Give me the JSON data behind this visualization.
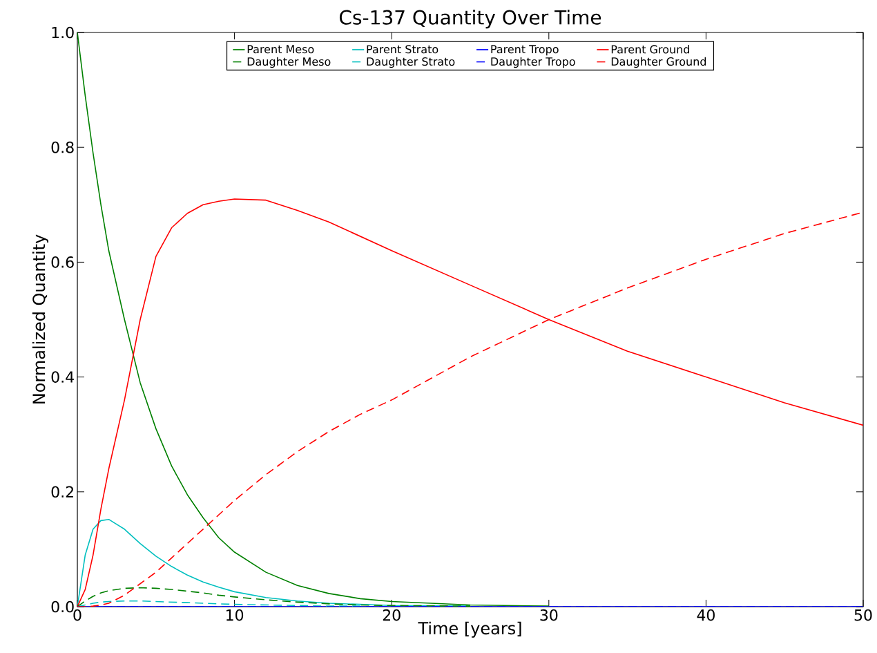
{
  "chart_data": {
    "type": "line",
    "title": "Cs-137 Quantity Over Time",
    "xlabel": "Time [years]",
    "ylabel": "Normalized Quantity",
    "x": [
      0,
      0.5,
      1,
      1.5,
      2,
      3,
      4,
      5,
      6,
      7,
      8,
      9,
      10,
      12,
      14,
      16,
      18,
      20,
      25,
      30,
      35,
      40,
      45,
      50
    ],
    "series": [
      {
        "name": "Parent Meso",
        "color": "#008000",
        "line_style": "solid",
        "values": [
          1,
          0.89,
          0.79,
          0.7,
          0.62,
          0.5,
          0.39,
          0.31,
          0.245,
          0.195,
          0.155,
          0.12,
          0.095,
          0.06,
          0.037,
          0.023,
          0.014,
          0.009,
          0.003,
          0.001,
          null,
          null,
          null,
          null
        ]
      },
      {
        "name": "Daughter Meso",
        "color": "#008000",
        "line_style": "dashed",
        "values": [
          0,
          0.01,
          0.018,
          0.024,
          0.028,
          0.032,
          0.033,
          0.032,
          0.03,
          0.027,
          0.024,
          0.02,
          0.017,
          0.012,
          0.008,
          0.005,
          0.003,
          0.002,
          0.001,
          null,
          null,
          null,
          null,
          null
        ]
      },
      {
        "name": "Parent Strato",
        "color": "#00bfbf",
        "line_style": "solid",
        "values": [
          0,
          0.09,
          0.135,
          0.15,
          0.152,
          0.135,
          0.11,
          0.088,
          0.07,
          0.055,
          0.043,
          0.034,
          0.026,
          0.016,
          0.01,
          0.006,
          0.004,
          0.002,
          0.001,
          null,
          null,
          null,
          null,
          null
        ]
      },
      {
        "name": "Daughter Strato",
        "color": "#00bfbf",
        "line_style": "dashed",
        "values": [
          0,
          0.003,
          0.006,
          0.008,
          0.009,
          0.01,
          0.01,
          0.009,
          0.008,
          0.007,
          0.006,
          0.005,
          0.004,
          0.003,
          0.002,
          0.001,
          0.001,
          null,
          null,
          null,
          null,
          null,
          null,
          null
        ]
      },
      {
        "name": "Parent Tropo",
        "color": "#0000ff",
        "line_style": "solid",
        "values": [
          0,
          0,
          0,
          0,
          0,
          0,
          0,
          0,
          0,
          0,
          0,
          0,
          0,
          0,
          0,
          0,
          0,
          0,
          0,
          0,
          0,
          0,
          0,
          0
        ]
      },
      {
        "name": "Daughter Tropo",
        "color": "#0000ff",
        "line_style": "dashed",
        "values": [
          0,
          0,
          0,
          0,
          0,
          0,
          0,
          0,
          0,
          0,
          0,
          0,
          0,
          0,
          0,
          0,
          0,
          0,
          0,
          0,
          0,
          0,
          0,
          0
        ]
      },
      {
        "name": "Parent Ground",
        "color": "#ff0000",
        "line_style": "solid",
        "values": [
          0,
          0.03,
          0.09,
          0.17,
          0.24,
          0.36,
          0.5,
          0.61,
          0.66,
          0.685,
          0.7,
          0.706,
          0.71,
          0.708,
          0.69,
          0.67,
          0.645,
          0.62,
          0.56,
          0.5,
          0.445,
          0.4,
          0.355,
          0.316
        ]
      },
      {
        "name": "Daughter Ground",
        "color": "#ff0000",
        "line_style": "dashed",
        "values": [
          0,
          0,
          0.001,
          0.003,
          0.006,
          0.02,
          0.04,
          0.06,
          0.085,
          0.11,
          0.135,
          0.16,
          0.185,
          0.23,
          0.27,
          0.305,
          0.335,
          0.36,
          0.435,
          0.5,
          0.555,
          0.605,
          0.65,
          0.687
        ]
      }
    ],
    "xlim": [
      0,
      50
    ],
    "ylim": [
      0,
      1
    ],
    "xticks": [
      0,
      10,
      20,
      30,
      40,
      50
    ],
    "yticks": [
      {
        "value": 0,
        "label": "0.0"
      },
      {
        "value": 0.2,
        "label": "0.2"
      },
      {
        "value": 0.4,
        "label": "0.4"
      },
      {
        "value": 0.6,
        "label": "0.6"
      },
      {
        "value": 0.8,
        "label": "0.8"
      },
      {
        "value": 1,
        "label": "1.0"
      }
    ],
    "legend": "top",
    "grid": false,
    "marker": "none"
  }
}
